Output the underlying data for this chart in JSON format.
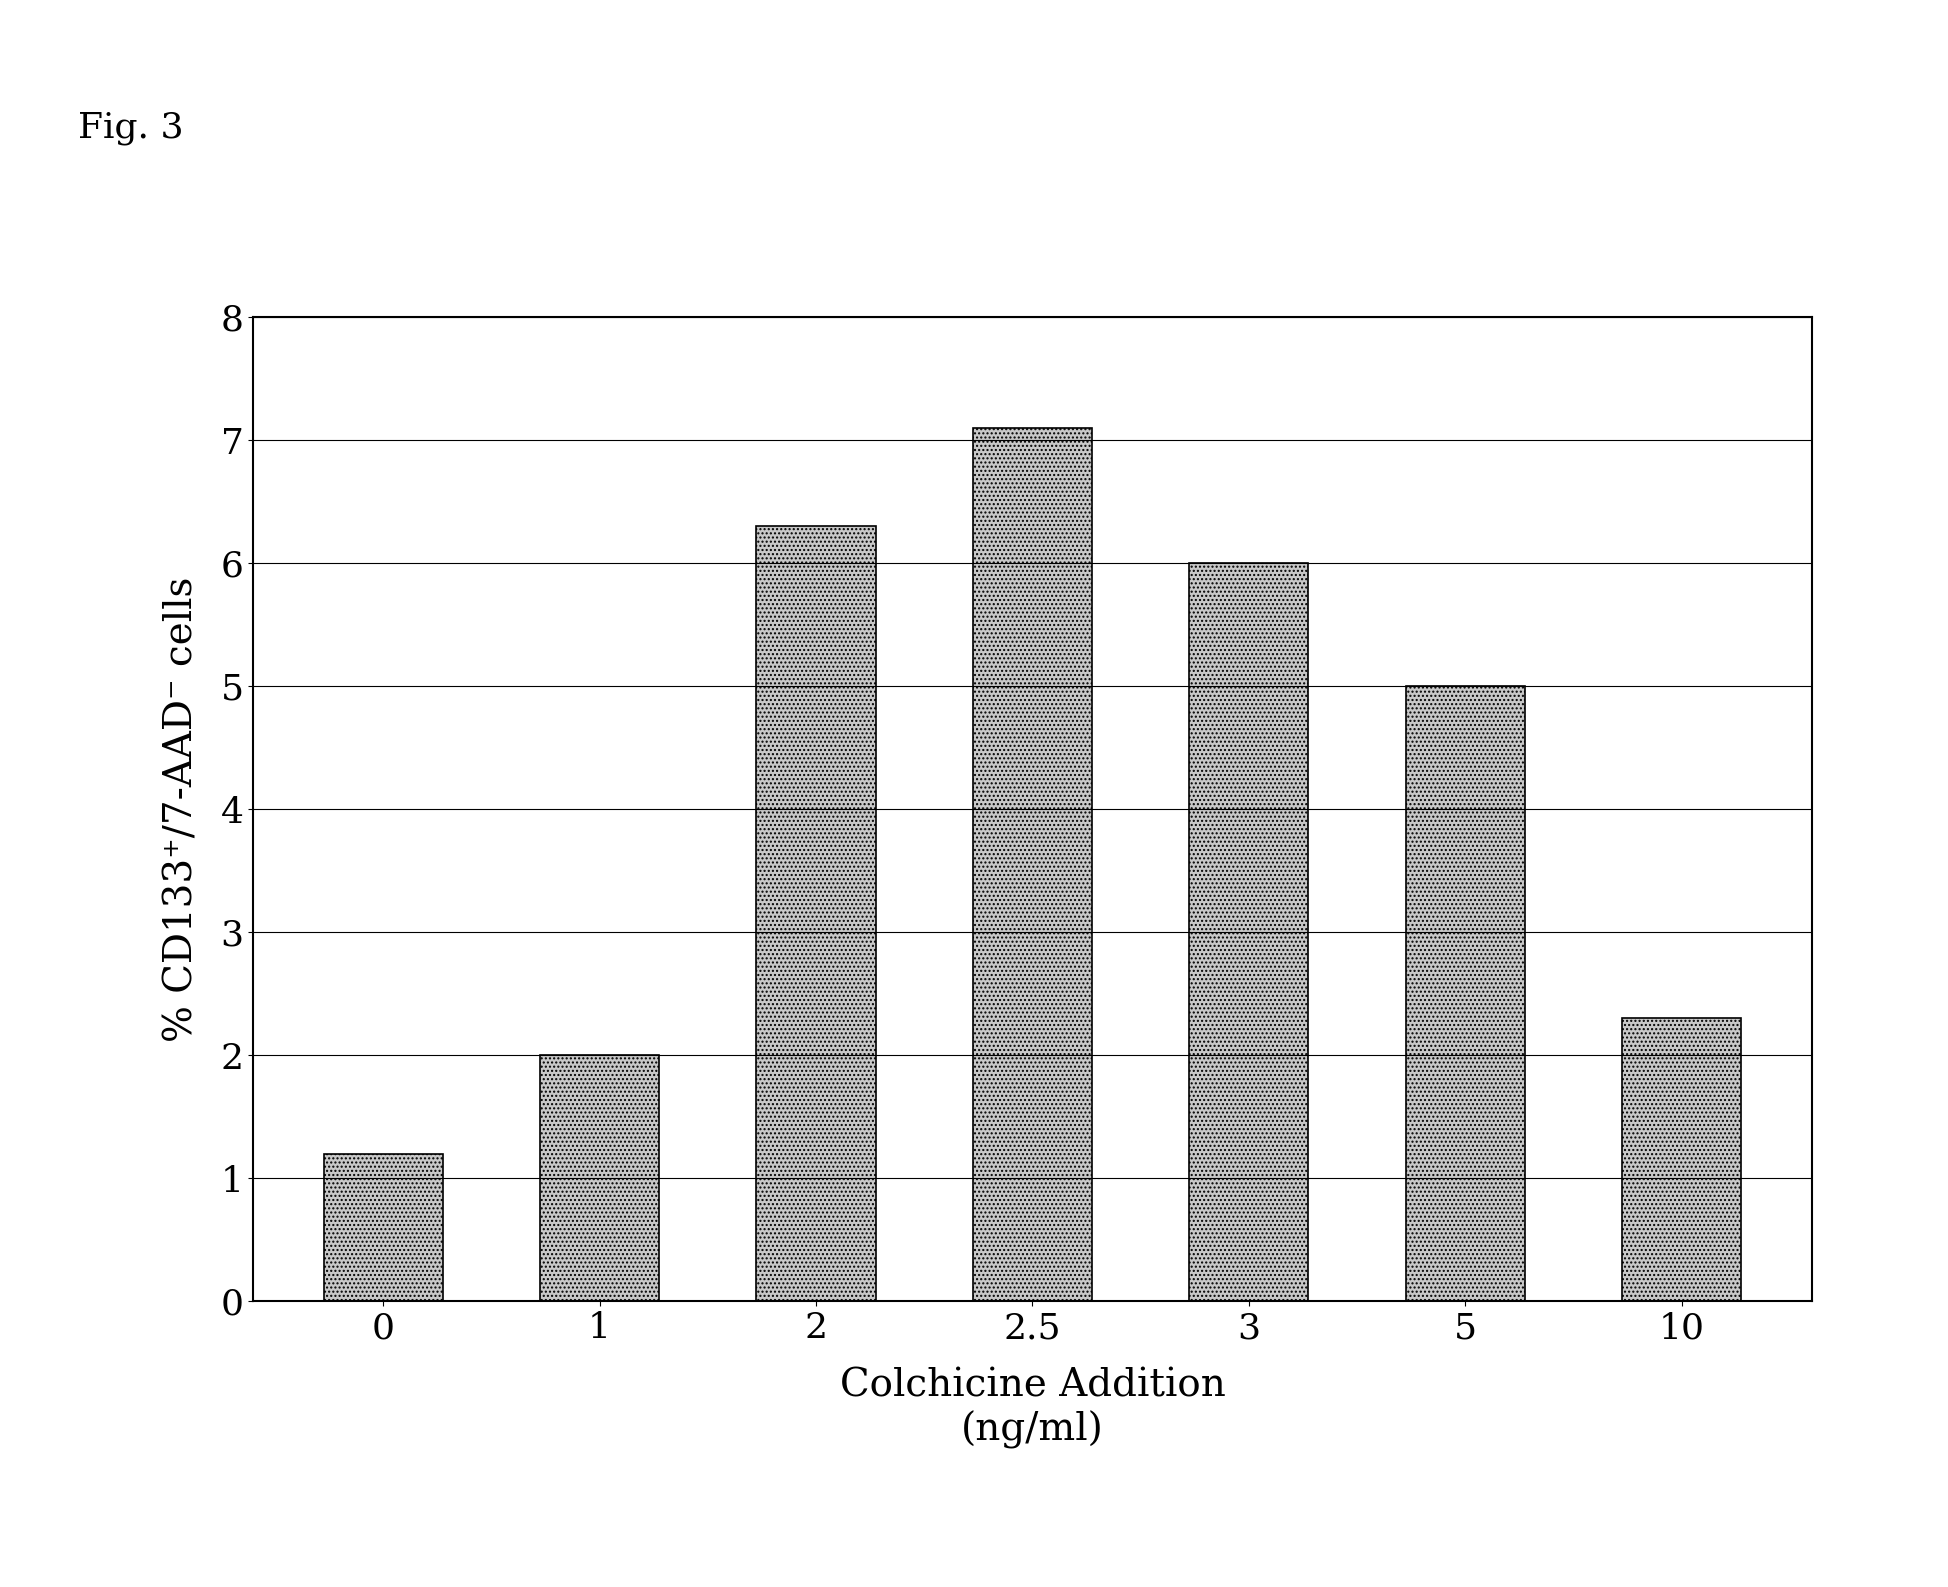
{
  "categories": [
    "0",
    "1",
    "2",
    "2.5",
    "3",
    "5",
    "10"
  ],
  "values": [
    1.2,
    2.0,
    6.3,
    7.1,
    6.0,
    5.0,
    2.3
  ],
  "bar_color": "#c8c8c8",
  "bar_hatch": "....",
  "xlabel_line1": "Colchicine Addition",
  "xlabel_line2": "(ng/ml)",
  "ylabel": "% CD133⁺/7-AAD⁻ cells",
  "ylim": [
    0,
    8
  ],
  "yticks": [
    0,
    1,
    2,
    3,
    4,
    5,
    6,
    7,
    8
  ],
  "fig_label": "Fig. 3",
  "background_color": "#ffffff",
  "axis_fontsize": 28,
  "tick_fontsize": 26,
  "fig_label_fontsize": 26,
  "bar_width": 0.55
}
